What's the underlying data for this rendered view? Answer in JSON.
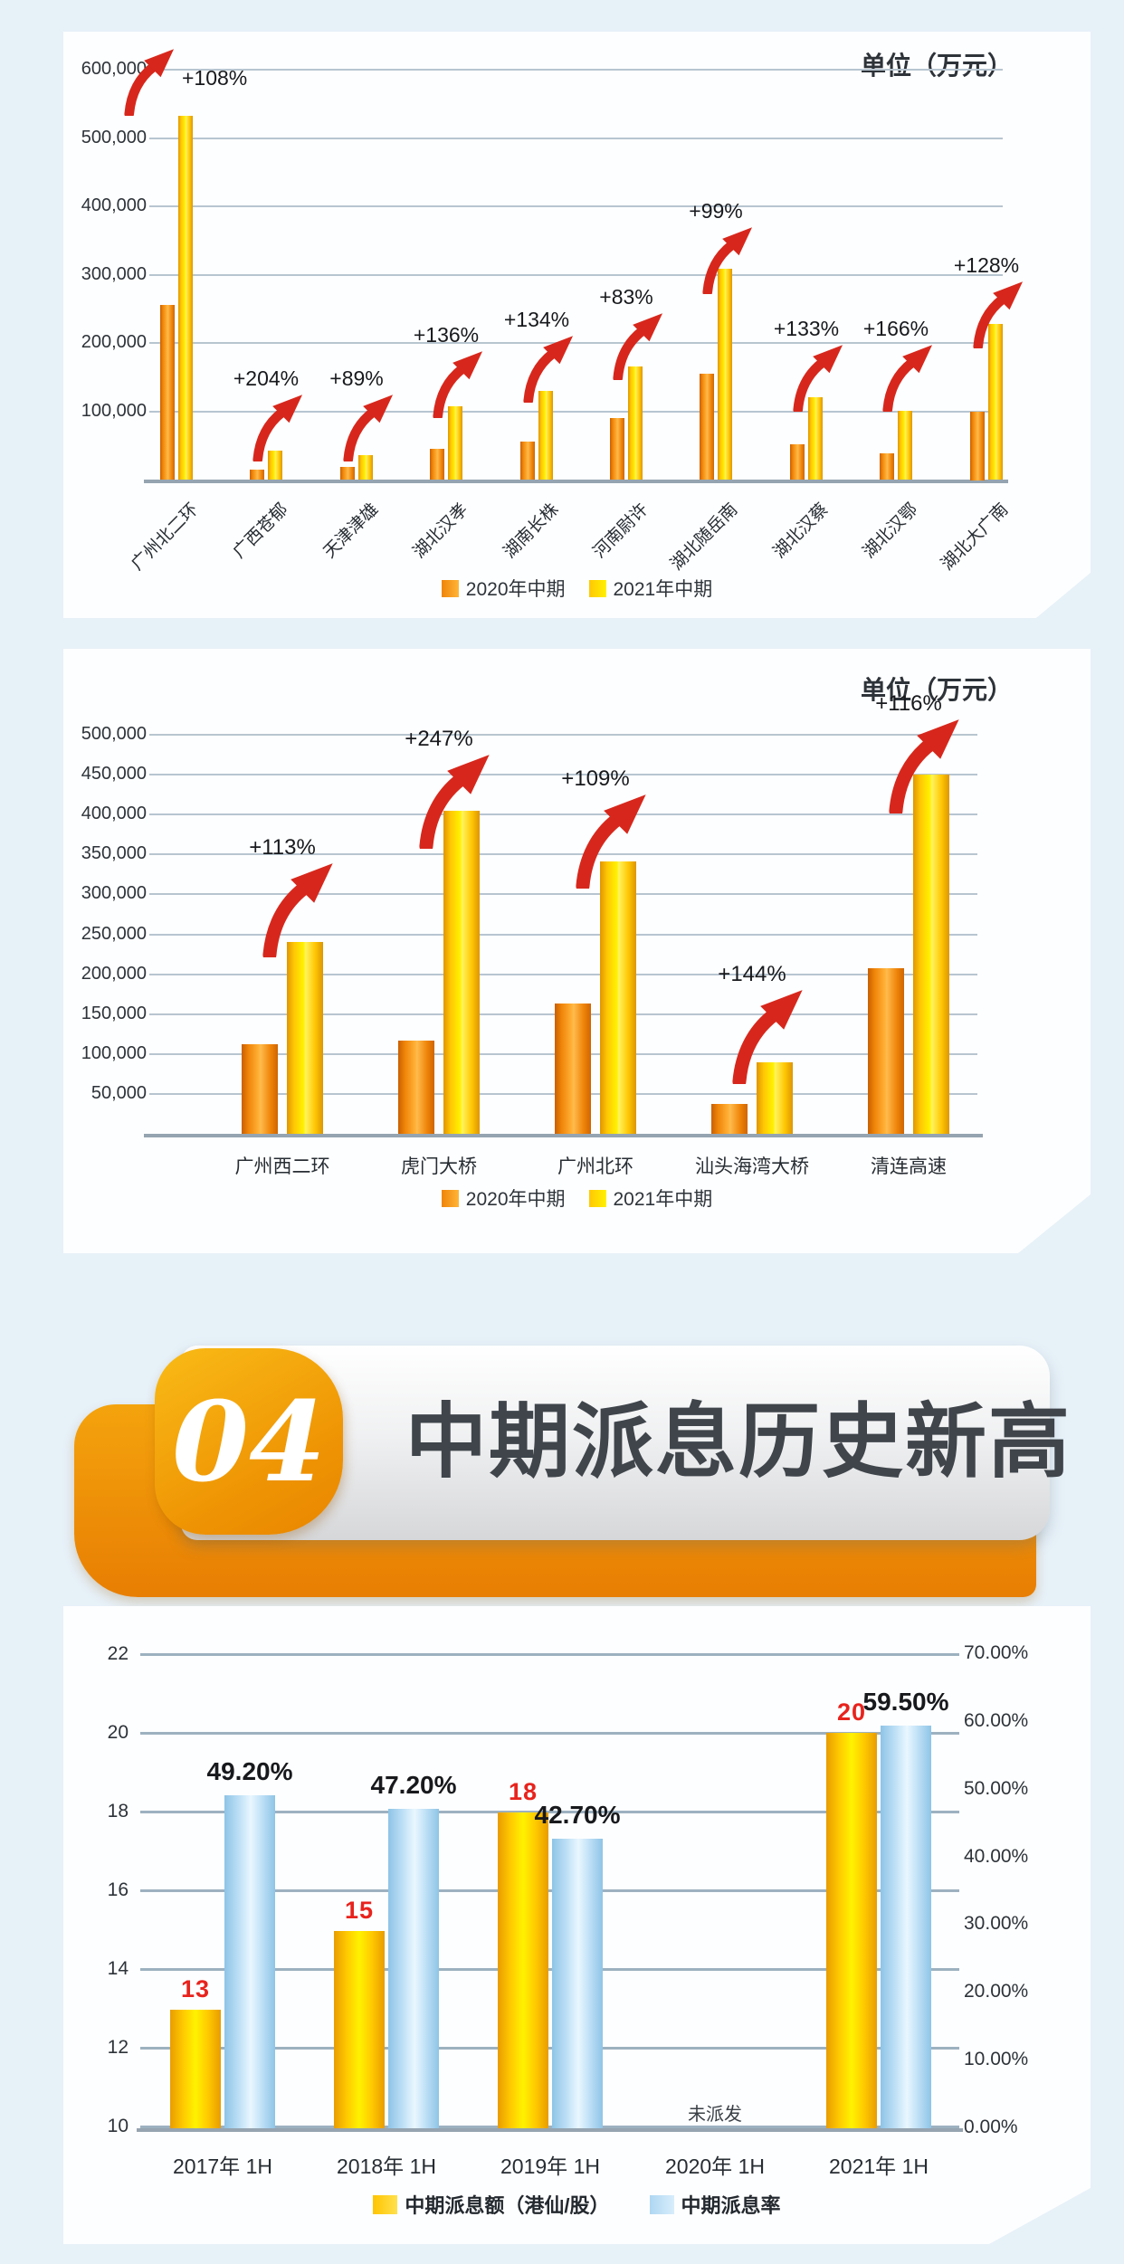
{
  "section_header": {
    "number": "04",
    "title": "中期派息历史新高"
  },
  "colors": {
    "orange_2020": "#ef8b0a",
    "yellow_2021": "#ffd400",
    "payout_yellow": "#ffc400",
    "payout_blue": "#b7dcf4",
    "arrow_red": "#d7271c",
    "value_red": "#e8231d",
    "page_background": "#e7f1f8",
    "card_background": "#fdfeff"
  },
  "chart_data": [
    {
      "type": "bar",
      "unit_label": "单位（万元）",
      "grid": true,
      "legend_position": "bottom",
      "categories": [
        "广州北二环",
        "广西苍郁",
        "天津津雄",
        "湖北汉孝",
        "湖南长株",
        "河南尉许",
        "湖北随岳南",
        "湖北汉蔡",
        "湖北汉鄂",
        "湖北大广南"
      ],
      "series": [
        {
          "name": "2020年中期",
          "values": [
            255000,
            14000,
            19000,
            45000,
            55000,
            90000,
            155000,
            52000,
            38000,
            100000
          ]
        },
        {
          "name": "2021年中期",
          "values": [
            532000,
            43000,
            36000,
            107000,
            130000,
            165000,
            308000,
            121000,
            101000,
            228000
          ]
        }
      ],
      "growth_labels": [
        "+108%",
        "+204%",
        "+89%",
        "+136%",
        "+134%",
        "+83%",
        "+99%",
        "+133%",
        "+166%",
        "+128%"
      ],
      "ylim": [
        0,
        600000
      ],
      "yticks": [
        "600,000",
        "500,000",
        "400,000",
        "300,000",
        "200,000",
        "100,000"
      ]
    },
    {
      "type": "bar",
      "unit_label": "单位（万元）",
      "grid": true,
      "legend_position": "bottom",
      "categories": [
        "广州西二环",
        "虎门大桥",
        "广州北环",
        "汕头海湾大桥",
        "清连高速"
      ],
      "series": [
        {
          "name": "2020年中期",
          "values": [
            112000,
            117000,
            163000,
            37000,
            208000
          ]
        },
        {
          "name": "2021年中期",
          "values": [
            240000,
            405000,
            341000,
            90000,
            450000
          ]
        }
      ],
      "growth_labels": [
        "+113%",
        "+247%",
        "+109%",
        "+144%",
        "+116%"
      ],
      "ylim": [
        0,
        500000
      ],
      "yticks": [
        "500,000",
        "450,000",
        "400,000",
        "350,000",
        "300,000",
        "250,000",
        "200,000",
        "150,000",
        "100,000",
        "50,000"
      ]
    },
    {
      "type": "bar",
      "dual_axis": true,
      "grid": true,
      "legend_position": "bottom",
      "categories": [
        "2017年 1H",
        "2018年 1H",
        "2019年 1H",
        "2020年 1H",
        "2021年 1H"
      ],
      "series": [
        {
          "name": "中期派息额（港仙/股）",
          "axis": "left",
          "values": [
            13,
            15,
            18,
            null,
            20
          ],
          "value_labels": [
            "13",
            "15",
            "18",
            "",
            "20"
          ]
        },
        {
          "name": "中期派息率",
          "axis": "right",
          "values": [
            49.2,
            47.2,
            42.7,
            null,
            59.5
          ],
          "value_labels": [
            "49.20%",
            "47.20%",
            "42.70%",
            "",
            "59.50%"
          ]
        }
      ],
      "left_axis": {
        "range": [
          10,
          22
        ],
        "ticks": [
          "22",
          "20",
          "18",
          "16",
          "14",
          "12",
          "10"
        ]
      },
      "right_axis": {
        "range": [
          0,
          70
        ],
        "ticks": [
          "70.00%",
          "60.00%",
          "50.00%",
          "40.00%",
          "30.00%",
          "20.00%",
          "10.00%",
          "0.00%"
        ]
      },
      "no_payout_note": "未派发"
    }
  ]
}
